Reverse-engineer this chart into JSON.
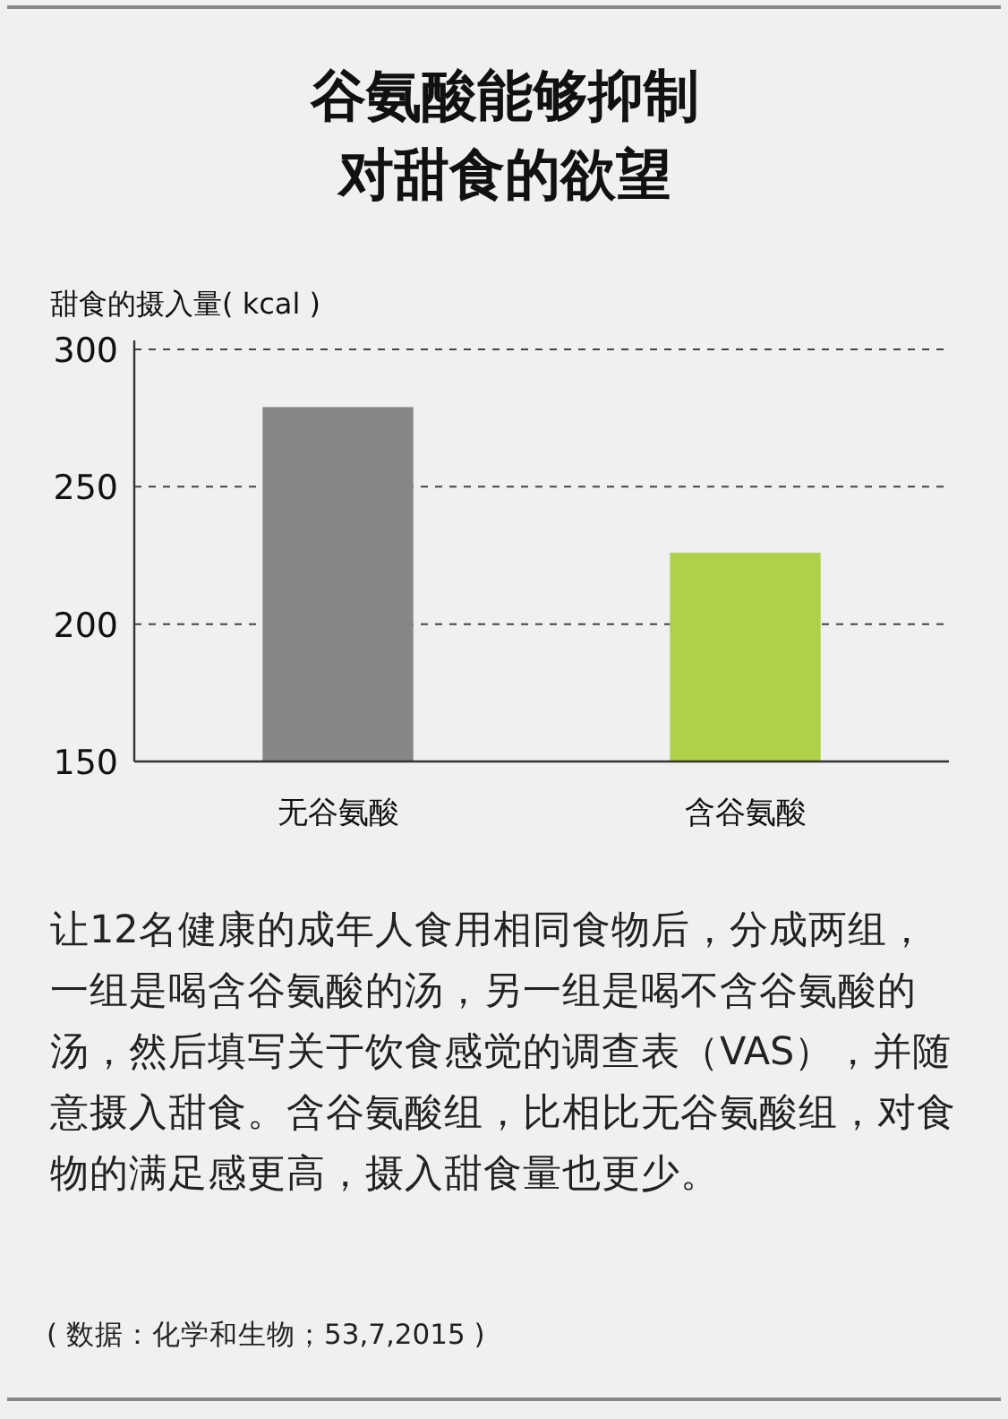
{
  "chart_data": {
    "type": "bar",
    "title": "谷氨酸能够抑制对甜食的欲望",
    "ylabel": "甜食的摄入量( kcal )",
    "categories": [
      "无谷氨酸",
      "含谷氨酸"
    ],
    "values": [
      279,
      226
    ],
    "colors": [
      "#878586",
      "#afd149"
    ],
    "ylim": [
      150,
      300
    ],
    "yticks": [
      150,
      200,
      250,
      300
    ],
    "grid": "y",
    "annotations": [
      "让12名健康的成年人食用相同食物后，分成两组，一组是喝含谷氨酸的汤，另一组是喝不含谷氨酸的汤，然后填写关于饮食感觉的调查表（VAS），并随意摄入甜食。含谷氨酸组，比相比无谷氨酸组，对食物的满足感更高，摄入甜食量也更少。",
      "( 数据：化学和生物；53,7,2015 )"
    ]
  }
}
